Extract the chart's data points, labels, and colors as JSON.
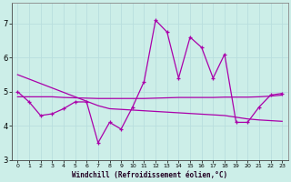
{
  "xlabel": "Windchill (Refroidissement éolien,°C)",
  "background_color": "#cceee8",
  "grid_color": "#aadddd",
  "line_color": "#aa00aa",
  "xlim": [
    -0.5,
    23.5
  ],
  "ylim": [
    3.0,
    7.6
  ],
  "yticks": [
    3,
    4,
    5,
    6,
    7
  ],
  "xticks": [
    0,
    1,
    2,
    3,
    4,
    5,
    6,
    7,
    8,
    9,
    10,
    11,
    12,
    13,
    14,
    15,
    16,
    17,
    18,
    19,
    20,
    21,
    22,
    23
  ],
  "hours": [
    0,
    1,
    2,
    3,
    4,
    5,
    6,
    7,
    8,
    9,
    10,
    11,
    12,
    13,
    14,
    15,
    16,
    17,
    18,
    19,
    20,
    21,
    22,
    23
  ],
  "temp_series": [
    5.0,
    4.7,
    4.3,
    4.35,
    4.5,
    4.7,
    4.7,
    3.5,
    4.1,
    3.9,
    4.55,
    5.3,
    7.1,
    6.75,
    5.4,
    6.6,
    6.3,
    5.4,
    6.1,
    4.1,
    4.1,
    4.55,
    4.9,
    4.95
  ],
  "line1": [
    5.5,
    5.37,
    5.24,
    5.11,
    4.98,
    4.85,
    4.72,
    4.59,
    4.5,
    4.48,
    4.46,
    4.44,
    4.42,
    4.4,
    4.38,
    4.36,
    4.34,
    4.32,
    4.3,
    4.25,
    4.2,
    4.17,
    4.15,
    4.13
  ],
  "line2": [
    4.85,
    4.85,
    4.85,
    4.85,
    4.83,
    4.82,
    4.81,
    4.8,
    4.8,
    4.8,
    4.8,
    4.8,
    4.81,
    4.82,
    4.83,
    4.83,
    4.83,
    4.83,
    4.84,
    4.84,
    4.84,
    4.85,
    4.87,
    4.9
  ]
}
